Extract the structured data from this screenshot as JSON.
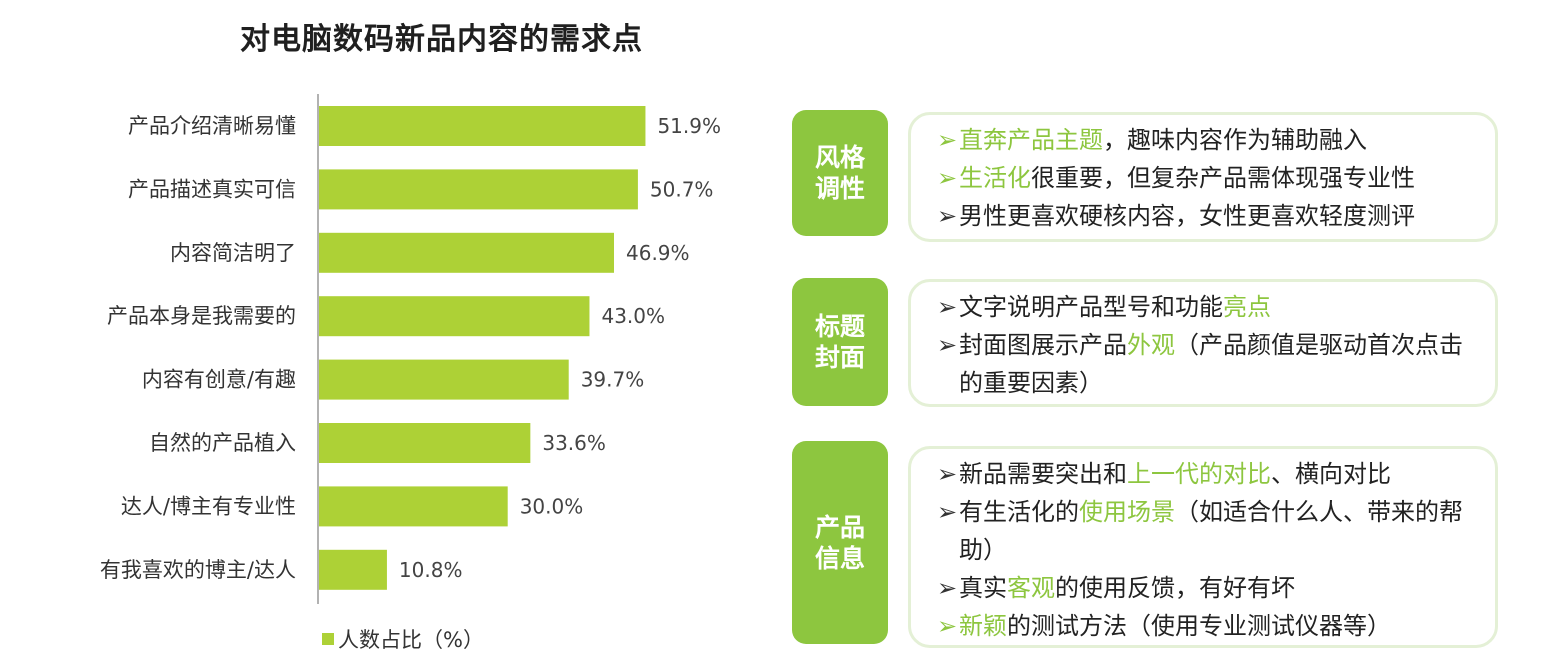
{
  "page_title": "对电脑数码新品内容的需求点",
  "colors": {
    "bar": "#add136",
    "tag": "#8dc63f",
    "highlight": "#8dc63f",
    "box_border": "#e4f0d6"
  },
  "chart_data": {
    "type": "bar",
    "orientation": "horizontal",
    "title": "对电脑数码新品内容的需求点",
    "categories": [
      "产品介绍清晰易懂",
      "产品描述真实可信",
      "内容简洁明了",
      "产品本身是我需要的",
      "内容有创意/有趣",
      "自然的产品植入",
      "达人/博主有专业性",
      "有我喜欢的博主/达人"
    ],
    "value_labels": [
      "51.9%",
      "50.7%",
      "46.9%",
      "43.0%",
      "39.7%",
      "33.6%",
      "30.0%",
      "10.8%"
    ],
    "series": [
      {
        "name": "人数占比（%）",
        "values": [
          51.9,
          50.7,
          46.9,
          43.0,
          39.7,
          33.6,
          30.0,
          10.8
        ]
      }
    ],
    "legend": "bottom"
  },
  "panels": [
    {
      "tag": "风格调性",
      "lines": [
        {
          "arrow_green": true,
          "parts": [
            {
              "text": "直奔产品主题",
              "hl": true
            },
            {
              "text": "，趣味内容作为辅助融入",
              "hl": false
            }
          ]
        },
        {
          "arrow_green": true,
          "parts": [
            {
              "text": "生活化",
              "hl": true
            },
            {
              "text": "很重要，但复杂产品需体现强专业性",
              "hl": false
            }
          ]
        },
        {
          "arrow_green": false,
          "parts": [
            {
              "text": "男性更喜欢硬核内容，女性更喜欢轻度测评",
              "hl": false
            }
          ]
        }
      ]
    },
    {
      "tag": "标题封面",
      "lines": [
        {
          "arrow_green": false,
          "parts": [
            {
              "text": "文字说明产品型号和功能",
              "hl": false
            },
            {
              "text": "亮点",
              "hl": true
            }
          ]
        },
        {
          "arrow_green": false,
          "parts": [
            {
              "text": "封面图展示产品",
              "hl": false
            },
            {
              "text": "外观",
              "hl": true
            },
            {
              "text": "（产品颜值是驱动首次点击的重要因素）",
              "hl": false
            }
          ]
        }
      ]
    },
    {
      "tag": "产品信息",
      "lines": [
        {
          "arrow_green": false,
          "parts": [
            {
              "text": "新品需要突出和",
              "hl": false
            },
            {
              "text": "上一代的对比",
              "hl": true
            },
            {
              "text": "、横向对比",
              "hl": false
            }
          ]
        },
        {
          "arrow_green": false,
          "parts": [
            {
              "text": "有生活化的",
              "hl": false
            },
            {
              "text": "使用场景",
              "hl": true
            },
            {
              "text": "（如适合什么人、带来的帮助）",
              "hl": false
            }
          ]
        },
        {
          "arrow_green": false,
          "parts": [
            {
              "text": "真实",
              "hl": false
            },
            {
              "text": "客观",
              "hl": true
            },
            {
              "text": "的使用反馈，有好有坏",
              "hl": false
            }
          ]
        },
        {
          "arrow_green": true,
          "parts": [
            {
              "text": "新颖",
              "hl": true
            },
            {
              "text": "的测试方法（使用专业测试仪器等）",
              "hl": false
            }
          ]
        }
      ]
    }
  ]
}
